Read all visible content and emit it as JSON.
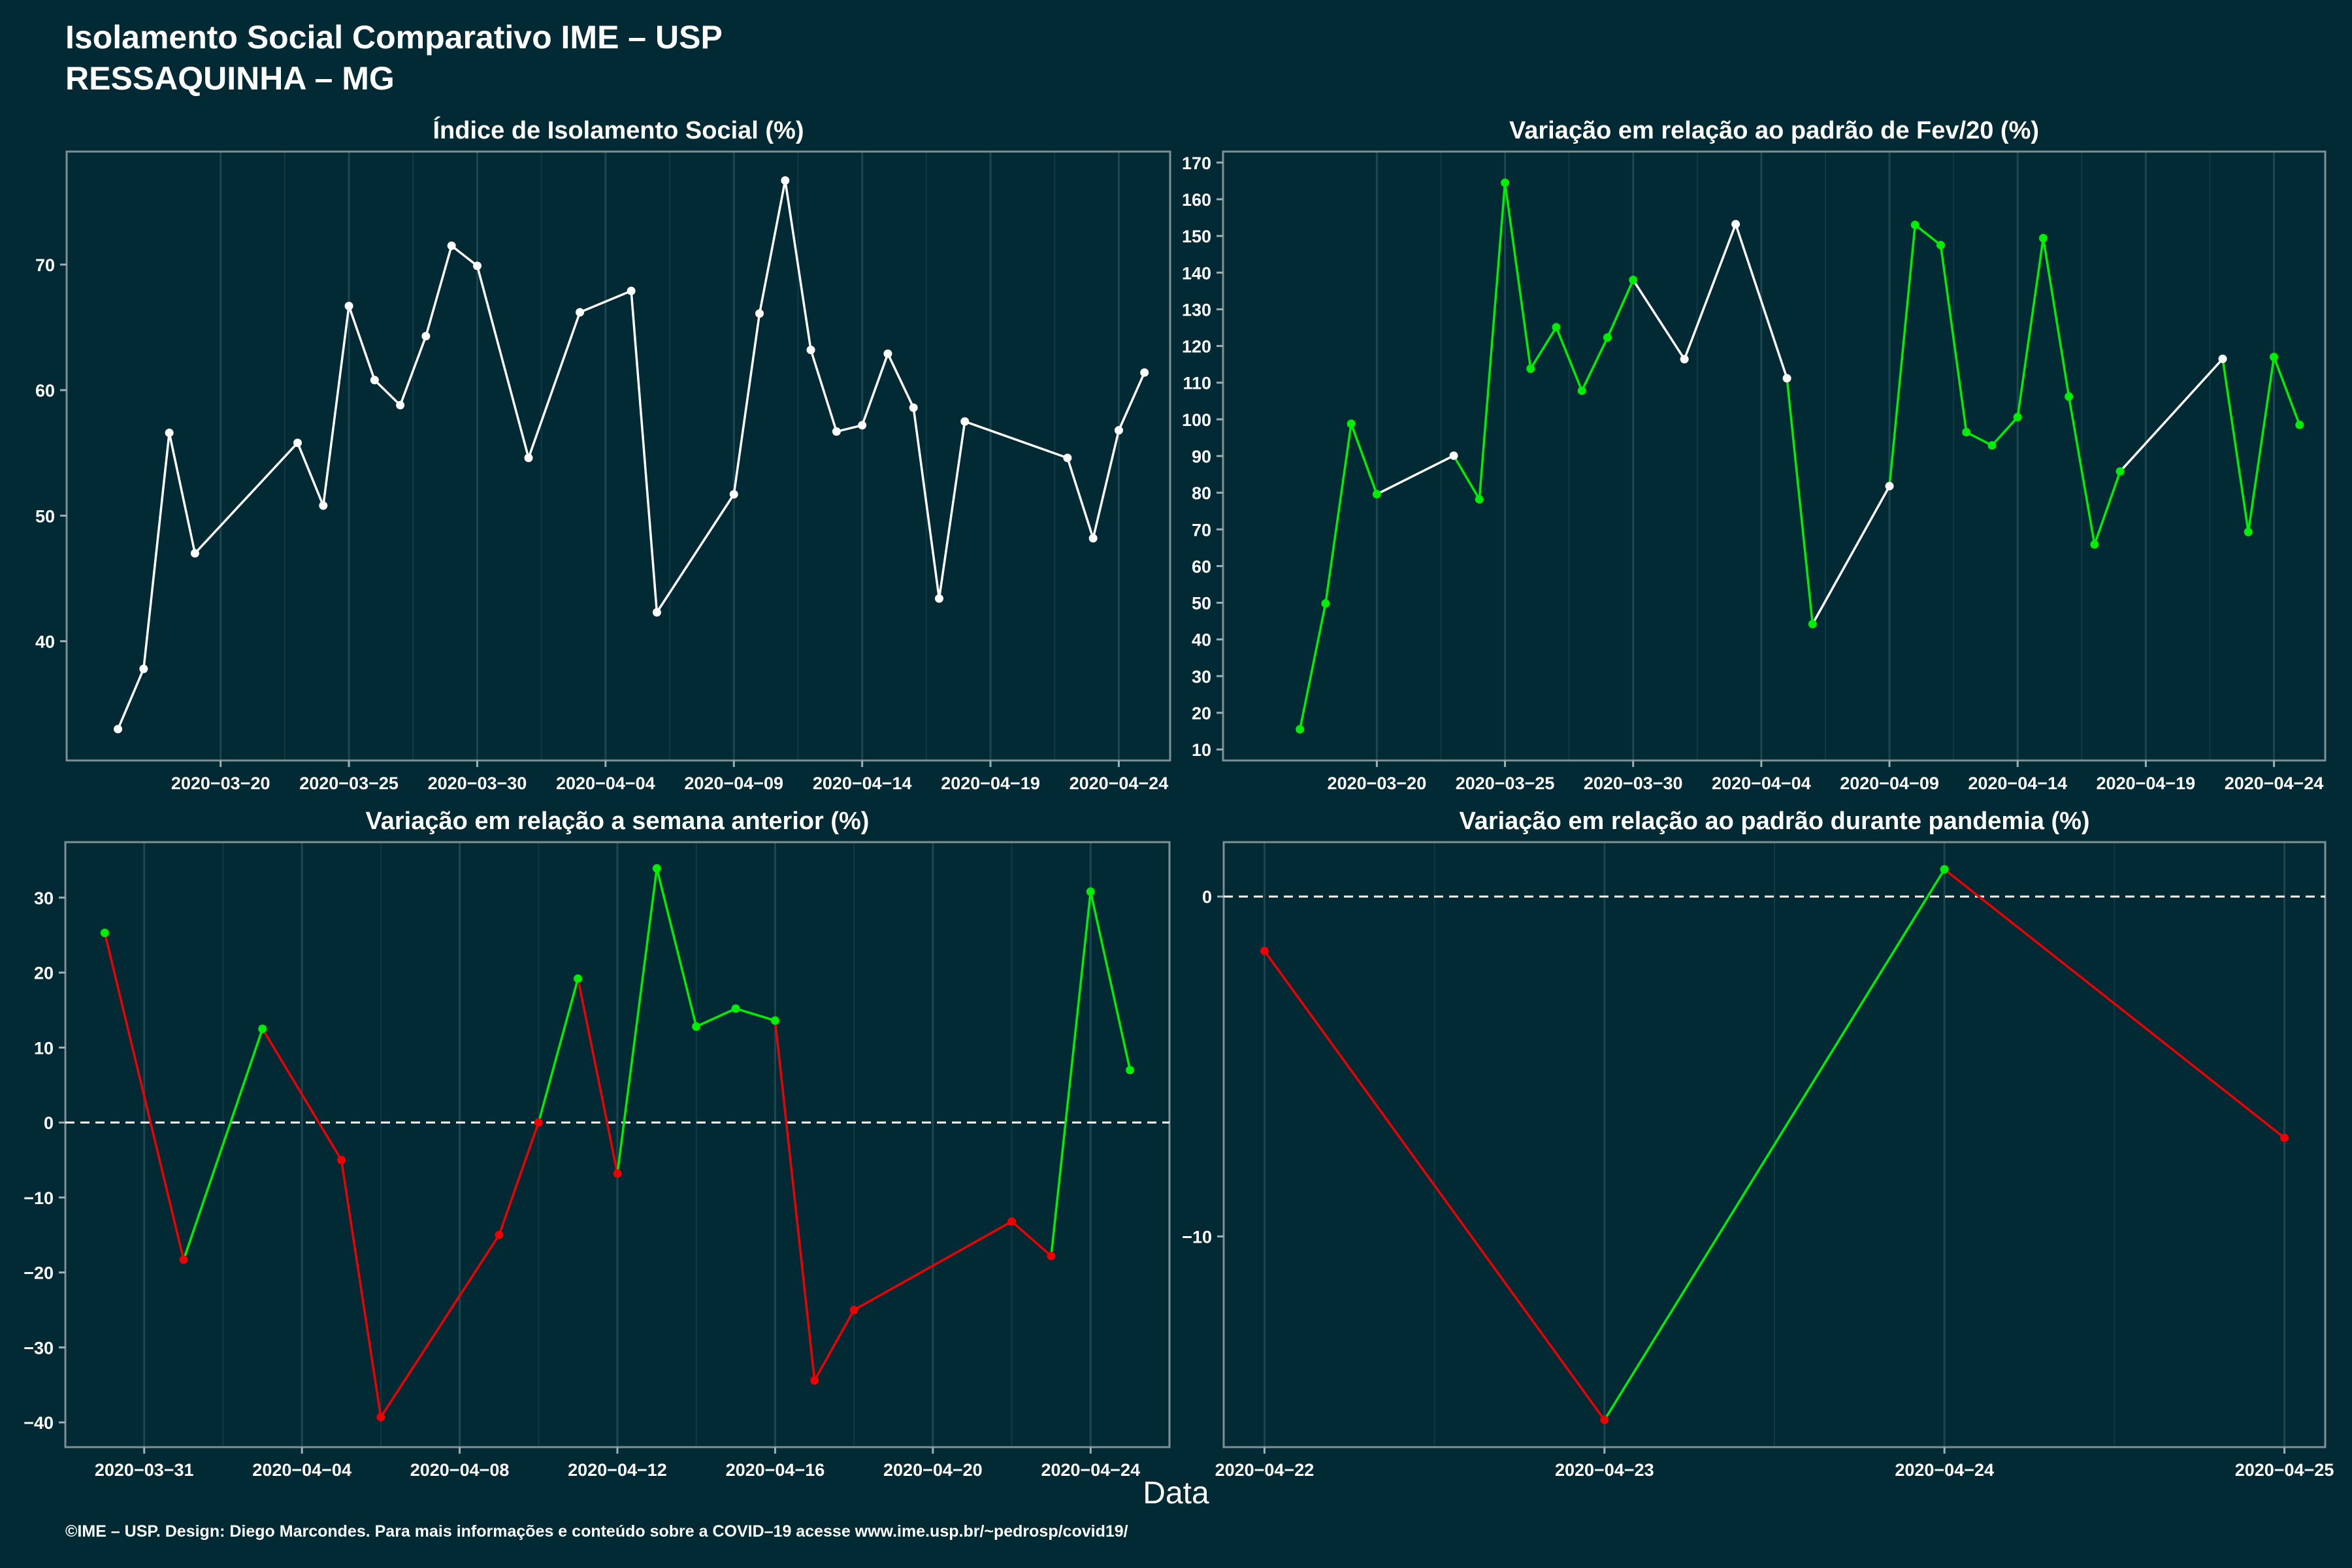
{
  "header": {
    "title_line1": "Isolamento Social Comparativo IME – USP",
    "title_line2": "RESSAQUINHA – MG"
  },
  "xlabel": "Data",
  "footer": "©IME – USP. Design: Diego Marcondes. Para mais informações e conteúdo sobre a COVID–19 acesse www.ime.usp.br/~pedrosp/covid19/",
  "colors": {
    "background": "#022a35",
    "white_line": "#ffffff",
    "increase": "#00ee00",
    "decrease": "#ee0000",
    "reference_line": "#ffffff"
  },
  "chart_data": [
    {
      "type": "line",
      "title": "Índice de Isolamento Social (%)",
      "x_type": "date",
      "xlim": [
        "2020-03-14",
        "2020-04-26"
      ],
      "x_ticks": [
        "2020-03-20",
        "2020-03-25",
        "2020-03-30",
        "2020-04-04",
        "2020-04-09",
        "2020-04-14",
        "2020-04-19",
        "2020-04-24"
      ],
      "ylim": [
        30.5,
        79
      ],
      "y_ticks": [
        40,
        50,
        60,
        70
      ],
      "points": [
        {
          "x": "2020-03-16",
          "y": 33.0,
          "color": "white"
        },
        {
          "x": "2020-03-17",
          "y": 37.8,
          "color": "white"
        },
        {
          "x": "2020-03-18",
          "y": 56.6,
          "color": "white"
        },
        {
          "x": "2020-03-19",
          "y": 47.0,
          "color": "white"
        },
        {
          "x": "2020-03-23",
          "y": 55.8,
          "color": "white"
        },
        {
          "x": "2020-03-24",
          "y": 50.8,
          "color": "white"
        },
        {
          "x": "2020-03-25",
          "y": 66.7,
          "color": "white"
        },
        {
          "x": "2020-03-26",
          "y": 60.8,
          "color": "white"
        },
        {
          "x": "2020-03-27",
          "y": 58.8,
          "color": "white"
        },
        {
          "x": "2020-03-28",
          "y": 64.3,
          "color": "white"
        },
        {
          "x": "2020-03-29",
          "y": 71.5,
          "color": "white"
        },
        {
          "x": "2020-03-30",
          "y": 69.9,
          "color": "white"
        },
        {
          "x": "2020-04-01",
          "y": 54.6,
          "color": "white"
        },
        {
          "x": "2020-04-03",
          "y": 66.2,
          "color": "white"
        },
        {
          "x": "2020-04-05",
          "y": 67.9,
          "color": "white"
        },
        {
          "x": "2020-04-06",
          "y": 42.3,
          "color": "white"
        },
        {
          "x": "2020-04-09",
          "y": 51.7,
          "color": "white"
        },
        {
          "x": "2020-04-10",
          "y": 66.1,
          "color": "white"
        },
        {
          "x": "2020-04-11",
          "y": 76.7,
          "color": "white"
        },
        {
          "x": "2020-04-12",
          "y": 63.2,
          "color": "white"
        },
        {
          "x": "2020-04-13",
          "y": 56.7,
          "color": "white"
        },
        {
          "x": "2020-04-14",
          "y": 57.2,
          "color": "white"
        },
        {
          "x": "2020-04-15",
          "y": 62.9,
          "color": "white"
        },
        {
          "x": "2020-04-16",
          "y": 58.6,
          "color": "white"
        },
        {
          "x": "2020-04-17",
          "y": 43.4,
          "color": "white"
        },
        {
          "x": "2020-04-18",
          "y": 57.5,
          "color": "white"
        },
        {
          "x": "2020-04-22",
          "y": 54.6,
          "color": "white"
        },
        {
          "x": "2020-04-23",
          "y": 48.2,
          "color": "white"
        },
        {
          "x": "2020-04-24",
          "y": 56.8,
          "color": "white"
        },
        {
          "x": "2020-04-25",
          "y": 61.4,
          "color": "white"
        }
      ]
    },
    {
      "type": "line",
      "title": "Variação em relação ao padrão de Fev/20 (%)",
      "x_type": "date",
      "xlim": [
        "2020-03-14",
        "2020-04-26"
      ],
      "x_ticks": [
        "2020-03-20",
        "2020-03-25",
        "2020-03-30",
        "2020-04-04",
        "2020-04-09",
        "2020-04-14",
        "2020-04-19",
        "2020-04-24"
      ],
      "ylim": [
        7,
        173
      ],
      "y_ticks": [
        10,
        20,
        30,
        40,
        50,
        60,
        70,
        80,
        90,
        100,
        110,
        120,
        130,
        140,
        150,
        160,
        170
      ],
      "points": [
        {
          "x": "2020-03-17",
          "y": 15.5,
          "color": "green"
        },
        {
          "x": "2020-03-18",
          "y": 49.8,
          "color": "green"
        },
        {
          "x": "2020-03-19",
          "y": 98.8,
          "color": "green"
        },
        {
          "x": "2020-03-20",
          "y": 79.6,
          "color": "green"
        },
        {
          "x": "2020-03-23",
          "y": 90.1,
          "color": "white"
        },
        {
          "x": "2020-03-24",
          "y": 78.2,
          "color": "green"
        },
        {
          "x": "2020-03-25",
          "y": 164.5,
          "color": "green"
        },
        {
          "x": "2020-03-26",
          "y": 113.8,
          "color": "green"
        },
        {
          "x": "2020-03-27",
          "y": 125.1,
          "color": "green"
        },
        {
          "x": "2020-03-28",
          "y": 107.8,
          "color": "green"
        },
        {
          "x": "2020-03-29",
          "y": 122.3,
          "color": "green"
        },
        {
          "x": "2020-03-30",
          "y": 138.0,
          "color": "green"
        },
        {
          "x": "2020-04-01",
          "y": 116.4,
          "color": "white"
        },
        {
          "x": "2020-04-03",
          "y": 153.2,
          "color": "white"
        },
        {
          "x": "2020-04-05",
          "y": 111.2,
          "color": "white"
        },
        {
          "x": "2020-04-06",
          "y": 44.2,
          "color": "green"
        },
        {
          "x": "2020-04-09",
          "y": 81.8,
          "color": "white"
        },
        {
          "x": "2020-04-10",
          "y": 153.0,
          "color": "green"
        },
        {
          "x": "2020-04-11",
          "y": 147.5,
          "color": "green"
        },
        {
          "x": "2020-04-12",
          "y": 96.5,
          "color": "green"
        },
        {
          "x": "2020-04-13",
          "y": 92.9,
          "color": "green"
        },
        {
          "x": "2020-04-14",
          "y": 100.6,
          "color": "green"
        },
        {
          "x": "2020-04-15",
          "y": 149.4,
          "color": "green"
        },
        {
          "x": "2020-04-16",
          "y": 106.2,
          "color": "green"
        },
        {
          "x": "2020-04-17",
          "y": 65.9,
          "color": "green"
        },
        {
          "x": "2020-04-18",
          "y": 85.8,
          "color": "green"
        },
        {
          "x": "2020-04-22",
          "y": 116.5,
          "color": "white"
        },
        {
          "x": "2020-04-23",
          "y": 69.3,
          "color": "green"
        },
        {
          "x": "2020-04-24",
          "y": 117.0,
          "color": "green"
        },
        {
          "x": "2020-04-25",
          "y": 98.5,
          "color": "green"
        }
      ]
    },
    {
      "type": "line",
      "title": "Variação em relação a semana anterior (%)",
      "x_type": "date",
      "xlim": [
        "2020-03-29",
        "2020-04-26"
      ],
      "x_ticks": [
        "2020-03-31",
        "2020-04-04",
        "2020-04-08",
        "2020-04-12",
        "2020-04-16",
        "2020-04-20",
        "2020-04-24"
      ],
      "ylim": [
        -43.3,
        37.4
      ],
      "y_ticks": [
        -40,
        -30,
        -20,
        -10,
        0,
        10,
        20,
        30
      ],
      "reference_line": 0,
      "points": [
        {
          "x": "2020-03-30",
          "y": 25.3,
          "color": "green"
        },
        {
          "x": "2020-04-01",
          "y": -18.3,
          "color": "red"
        },
        {
          "x": "2020-04-03",
          "y": 12.5,
          "color": "green"
        },
        {
          "x": "2020-04-05",
          "y": -5.0,
          "color": "red"
        },
        {
          "x": "2020-04-06",
          "y": -39.3,
          "color": "red"
        },
        {
          "x": "2020-04-09",
          "y": -15.0,
          "color": "red"
        },
        {
          "x": "2020-04-10",
          "y": 0.0,
          "color": "red"
        },
        {
          "x": "2020-04-11",
          "y": 19.2,
          "color": "green"
        },
        {
          "x": "2020-04-12",
          "y": -6.8,
          "color": "red"
        },
        {
          "x": "2020-04-13",
          "y": 33.9,
          "color": "green"
        },
        {
          "x": "2020-04-14",
          "y": 12.8,
          "color": "green"
        },
        {
          "x": "2020-04-15",
          "y": 15.2,
          "color": "green"
        },
        {
          "x": "2020-04-16",
          "y": 13.6,
          "color": "green"
        },
        {
          "x": "2020-04-17",
          "y": -34.4,
          "color": "red"
        },
        {
          "x": "2020-04-18",
          "y": -25.0,
          "color": "red"
        },
        {
          "x": "2020-04-22",
          "y": -13.2,
          "color": "red"
        },
        {
          "x": "2020-04-23",
          "y": -17.8,
          "color": "red"
        },
        {
          "x": "2020-04-24",
          "y": 30.8,
          "color": "green"
        },
        {
          "x": "2020-04-25",
          "y": 7.0,
          "color": "green"
        }
      ]
    },
    {
      "type": "line",
      "title": "Variação em relação ao padrão durante pandemia (%)",
      "x_type": "date",
      "xlim": [
        "2020-04-22",
        "2020-04-25"
      ],
      "x_ticks": [
        "2020-04-22",
        "2020-04-23",
        "2020-04-24",
        "2020-04-25"
      ],
      "ylim": [
        -16.2,
        1.6
      ],
      "y_ticks": [
        -10,
        0
      ],
      "reference_line": 0,
      "points": [
        {
          "x": "2020-04-22",
          "y": -1.6,
          "color": "red"
        },
        {
          "x": "2020-04-23",
          "y": -15.4,
          "color": "red"
        },
        {
          "x": "2020-04-24",
          "y": 0.8,
          "color": "green"
        },
        {
          "x": "2020-04-25",
          "y": -7.1,
          "color": "red"
        }
      ]
    }
  ]
}
